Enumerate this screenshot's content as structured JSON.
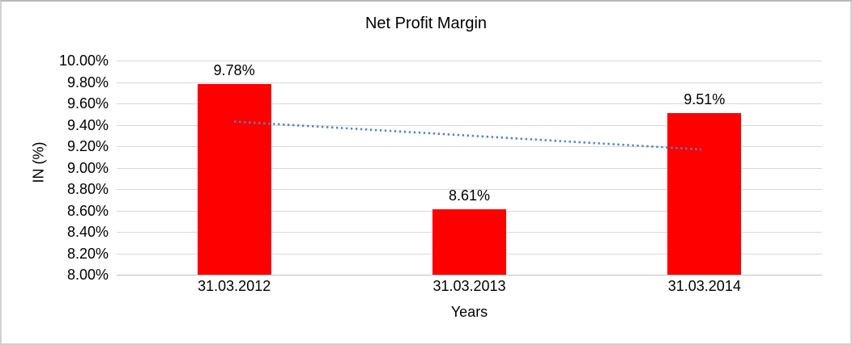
{
  "chart_data": {
    "type": "bar",
    "title": "Net Profit Margin",
    "xlabel": "Years",
    "ylabel": "IN (%)",
    "categories": [
      "31.03.2012",
      "31.03.2013",
      "31.03.2014"
    ],
    "values": [
      9.78,
      8.61,
      9.51
    ],
    "data_labels": [
      "9.78%",
      "8.61%",
      "9.51%"
    ],
    "ylim": [
      8.0,
      10.0
    ],
    "ytick_step": 0.2,
    "ytick_labels": [
      "10.00%",
      "9.80%",
      "9.60%",
      "9.40%",
      "9.20%",
      "9.00%",
      "8.80%",
      "8.60%",
      "8.40%",
      "8.20%",
      "8.00%"
    ],
    "grid": true,
    "legend": false,
    "bar_color": "#ff0000",
    "gridline_color": "#d9d9d9",
    "axis_line_color": "#bfbfbf",
    "text_color": "#000000",
    "trendline": {
      "type": "linear",
      "style": "dotted",
      "color": "#4f86c6",
      "start_value": 9.43,
      "end_value": 9.17
    }
  }
}
